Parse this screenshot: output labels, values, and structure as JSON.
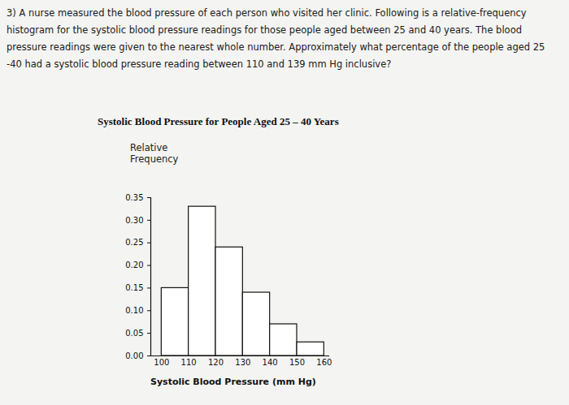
{
  "question": {
    "number": "3)",
    "text": "A nurse measured the blood pressure of each person who visited her clinic. Following is a relative-frequency histogram for the systolic blood pressure readings for those people aged between 25 and 40 years. The blood pressure readings were given to the nearest whole number. Approximately what percentage of the people aged 25 -40 had a systolic blood pressure reading between 110 and 139 mm Hg inclusive?"
  },
  "chart_data": {
    "type": "histogram",
    "title": "Systolic Blood Pressure for People Aged 25 – 40 Years",
    "x_label": "Systolic Blood Pressure (mm Hg)",
    "y_label": "Relative Frequency",
    "bins": [
      100,
      110,
      120,
      130,
      140,
      150,
      160
    ],
    "values": [
      0.15,
      0.33,
      0.24,
      0.14,
      0.07,
      0.03
    ],
    "color": "#ffffff",
    "xlim": [
      96,
      162
    ],
    "xticks": [
      100,
      110,
      120,
      130,
      140,
      150,
      160
    ],
    "ylim": [
      0,
      0.35
    ],
    "yticks": [
      {
        "value": 0,
        "label": "0.00"
      },
      {
        "value": 0.05,
        "label": "0.05"
      },
      {
        "value": 0.1,
        "label": "0.10"
      },
      {
        "value": 0.15,
        "label": "0.15"
      },
      {
        "value": 0.2,
        "label": "0.20"
      },
      {
        "value": 0.25,
        "label": "0.25"
      },
      {
        "value": 0.3,
        "label": "0.30"
      },
      {
        "value": 0.35,
        "label": "0.35"
      }
    ],
    "grid": false
  }
}
